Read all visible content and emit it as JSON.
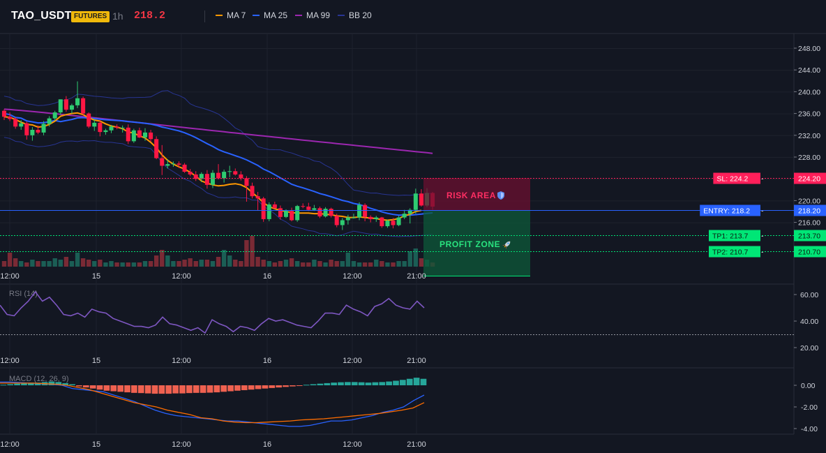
{
  "header": {
    "symbol": "TAO_USDT",
    "badge": "FUTURES",
    "timeframe": "1h",
    "last_price": "218.2"
  },
  "legend": [
    {
      "label": "MA 7",
      "color": "#ff9800"
    },
    {
      "label": "MA 25",
      "color": "#2962ff"
    },
    {
      "label": "MA 99",
      "color": "#9c27b0"
    },
    {
      "label": "BB 20",
      "color": "#1e3a8a"
    }
  ],
  "colors": {
    "up": "#26a69a",
    "up_bright": "#2ecc71",
    "down": "#f23645",
    "down_bright": "#ff1744",
    "ma7": "#ff9800",
    "ma25": "#2962ff",
    "ma99": "#9c27b0",
    "bb": "#283593",
    "rsi": "#7e57c2",
    "macd": "#2962ff",
    "signal": "#ff6d00"
  },
  "price_axis": {
    "ticks": [
      "248.00",
      "244.00",
      "240.00",
      "236.00",
      "232.00",
      "228.00",
      "224.00",
      "220.00",
      "216.00"
    ],
    "tick_values": [
      248,
      244,
      240,
      236,
      232,
      228,
      224,
      220,
      216
    ]
  },
  "time_axis": {
    "labels": [
      "12:00",
      "15",
      "12:00",
      "16",
      "12:00",
      "21:00"
    ]
  },
  "levels": [
    {
      "id": "sl",
      "line_label": "SL: 224.2",
      "axis_label": "224.20",
      "value": 224.2,
      "color": "#ff1f5a"
    },
    {
      "id": "entry",
      "line_label": "ENTRY: 218.2",
      "axis_label": "218.20",
      "value": 218.2,
      "color": "#2962ff"
    },
    {
      "id": "tp1",
      "line_label": "TP1: 213.7",
      "axis_label": "213.70",
      "value": 213.7,
      "color": "#00e676"
    },
    {
      "id": "tp2",
      "line_label": "TP2: 210.7",
      "axis_label": "210.70",
      "value": 210.7,
      "color": "#00e676"
    }
  ],
  "zones": {
    "risk": "RISK AREA",
    "profit": "PROFIT ZONE"
  },
  "rsi": {
    "title": "RSI (14)",
    "ticks": [
      "60.00",
      "40.00",
      "20.00"
    ],
    "values": [
      52,
      45,
      44,
      50,
      55,
      62,
      55,
      58,
      52,
      45,
      44,
      46,
      43,
      49,
      47,
      46,
      42,
      40,
      38,
      36,
      36,
      35,
      37,
      43,
      38,
      37,
      35,
      33,
      35,
      31,
      41,
      38,
      36,
      32,
      36,
      35,
      33,
      38,
      42,
      40,
      41,
      39,
      37,
      36,
      35,
      40,
      46,
      46,
      45,
      52,
      49,
      47,
      44,
      51,
      53,
      57,
      52,
      50,
      49,
      55,
      50
    ]
  },
  "macd": {
    "title": "MACD (12, 26, 9)",
    "ticks": [
      "0.00",
      "-2.00",
      "-4.00"
    ],
    "histogram": [
      0.05,
      0.1,
      0.15,
      0.2,
      0.25,
      0.25,
      0.3,
      0.35,
      0.3,
      0.2,
      0.1,
      -0.1,
      -0.2,
      -0.3,
      -0.4,
      -0.5,
      -0.55,
      -0.6,
      -0.65,
      -0.7,
      -0.72,
      -0.75,
      -0.78,
      -0.78,
      -0.78,
      -0.75,
      -0.75,
      -0.72,
      -0.7,
      -0.7,
      -0.68,
      -0.65,
      -0.6,
      -0.55,
      -0.5,
      -0.45,
      -0.4,
      -0.35,
      -0.3,
      -0.25,
      -0.2,
      -0.15,
      -0.1,
      -0.05,
      0.05,
      0.1,
      0.15,
      0.2,
      0.25,
      0.28,
      0.3,
      0.3,
      0.28,
      0.25,
      0.28,
      0.3,
      0.35,
      0.42,
      0.5,
      0.6,
      0.7,
      0.6
    ],
    "macd_line": [
      0.3,
      0.3,
      0.25,
      0.2,
      0.15,
      0.1,
      0.0,
      -0.3,
      -0.4,
      -0.5,
      -0.6,
      -0.9,
      -1.2,
      -1.5,
      -1.9,
      -2.3,
      -2.6,
      -2.8,
      -2.9,
      -3.0,
      -3.1,
      -3.2,
      -3.3,
      -3.3,
      -3.4,
      -3.5,
      -3.6,
      -3.7,
      -3.8,
      -3.8,
      -3.7,
      -3.5,
      -3.3,
      -3.3,
      -3.2,
      -3.0,
      -2.8,
      -2.5,
      -2.3,
      -2.0,
      -1.4,
      -0.9
    ],
    "signal_line": [
      0.2,
      0.2,
      0.2,
      0.2,
      0.15,
      0.1,
      0.0,
      -0.2,
      -0.4,
      -0.7,
      -1.0,
      -1.3,
      -1.6,
      -1.8,
      -2.0,
      -2.3,
      -2.5,
      -2.7,
      -3.0,
      -3.1,
      -3.3,
      -3.4,
      -3.45,
      -3.45,
      -3.4,
      -3.35,
      -3.3,
      -3.2,
      -3.15,
      -3.1,
      -3.0,
      -2.9,
      -2.8,
      -2.7,
      -2.6,
      -2.45,
      -2.3,
      -2.1,
      -1.6
    ]
  },
  "candles": [
    [
      236.5,
      236.8,
      234.8,
      235.4
    ],
    [
      235.4,
      236.2,
      234.6,
      235.0
    ],
    [
      235.0,
      235.3,
      233.2,
      233.6
    ],
    [
      233.6,
      234.8,
      233.0,
      234.2
    ],
    [
      234.2,
      234.5,
      231.2,
      232.0
    ],
    [
      232.0,
      233.5,
      231.0,
      233.0
    ],
    [
      233.0,
      233.8,
      232.2,
      232.5
    ],
    [
      232.5,
      234.6,
      232.0,
      234.1
    ],
    [
      234.1,
      235.5,
      233.6,
      235.1
    ],
    [
      235.1,
      236.5,
      234.7,
      236.2
    ],
    [
      236.2,
      238.6,
      235.8,
      238.6
    ],
    [
      238.6,
      239.2,
      236.3,
      236.7
    ],
    [
      236.7,
      237.8,
      236.0,
      237.5
    ],
    [
      237.5,
      241.9,
      237.0,
      238.8
    ],
    [
      238.8,
      239.1,
      235.6,
      236.0
    ],
    [
      236.0,
      236.2,
      233.3,
      233.6
    ],
    [
      233.6,
      235.0,
      232.8,
      234.3
    ],
    [
      234.3,
      234.8,
      231.8,
      232.6
    ],
    [
      232.6,
      233.2,
      232.1,
      232.9
    ],
    [
      232.9,
      233.9,
      232.4,
      233.6
    ],
    [
      233.6,
      234.0,
      233.1,
      233.4
    ],
    [
      233.4,
      233.8,
      232.5,
      233.4
    ],
    [
      233.4,
      234.0,
      230.4,
      230.9
    ],
    [
      230.9,
      233.2,
      230.6,
      232.9
    ],
    [
      232.9,
      233.4,
      231.5,
      231.6
    ],
    [
      231.6,
      233.3,
      231.0,
      232.5
    ],
    [
      232.5,
      233.0,
      230.8,
      231.3
    ],
    [
      231.3,
      231.8,
      227.6,
      227.8
    ],
    [
      227.8,
      230.2,
      224.7,
      226.4
    ],
    [
      226.4,
      227.6,
      225.9,
      226.7
    ],
    [
      226.7,
      227.2,
      226.2,
      226.8
    ],
    [
      226.8,
      227.2,
      226.0,
      226.6
    ],
    [
      226.6,
      226.9,
      225.1,
      225.3
    ],
    [
      225.3,
      225.8,
      224.5,
      224.8
    ],
    [
      224.8,
      225.4,
      223.6,
      224.0
    ],
    [
      224.0,
      225.2,
      223.4,
      224.9
    ],
    [
      224.9,
      225.6,
      222.2,
      222.9
    ],
    [
      222.9,
      225.6,
      222.3,
      225.1
    ],
    [
      225.1,
      226.7,
      223.9,
      224.1
    ],
    [
      224.1,
      225.7,
      223.3,
      225.3
    ],
    [
      225.3,
      226.4,
      224.3,
      225.4
    ],
    [
      225.4,
      225.9,
      224.6,
      224.8
    ],
    [
      224.8,
      225.4,
      223.7,
      224.1
    ],
    [
      224.1,
      224.5,
      219.8,
      222.7
    ],
    [
      222.7,
      223.3,
      220.4,
      220.8
    ],
    [
      220.8,
      221.6,
      218.2,
      220.4
    ],
    [
      220.4,
      220.7,
      216.1,
      216.6
    ],
    [
      216.6,
      219.7,
      216.2,
      219.3
    ],
    [
      219.3,
      219.8,
      218.5,
      218.6
    ],
    [
      218.6,
      219.1,
      216.5,
      217.0
    ],
    [
      217.0,
      218.4,
      216.8,
      218.1
    ],
    [
      218.1,
      218.7,
      216.2,
      216.4
    ],
    [
      216.4,
      219.2,
      216.1,
      219.0
    ],
    [
      219.0,
      219.5,
      218.6,
      218.9
    ],
    [
      218.9,
      219.6,
      218.1,
      218.3
    ],
    [
      218.3,
      219.2,
      218.1,
      218.6
    ],
    [
      218.6,
      218.9,
      216.8,
      217.1
    ],
    [
      217.1,
      218.8,
      216.9,
      218.5
    ],
    [
      218.5,
      218.7,
      216.9,
      217.2
    ],
    [
      217.2,
      217.6,
      215.1,
      215.5
    ],
    [
      215.5,
      216.8,
      214.6,
      216.4
    ],
    [
      216.4,
      217.4,
      215.6,
      216.9
    ],
    [
      216.9,
      217.6,
      216.7,
      216.9
    ],
    [
      216.9,
      219.7,
      216.4,
      219.2
    ],
    [
      219.2,
      219.5,
      216.2,
      217.0
    ],
    [
      217.0,
      217.3,
      216.0,
      216.6
    ],
    [
      216.6,
      217.2,
      216.1,
      216.9
    ],
    [
      216.9,
      217.0,
      215.0,
      215.3
    ],
    [
      215.3,
      216.5,
      215.0,
      216.3
    ],
    [
      216.3,
      216.8,
      214.9,
      215.5
    ],
    [
      215.5,
      217.2,
      215.3,
      216.9
    ],
    [
      216.9,
      218.3,
      216.6,
      217.6
    ],
    [
      217.6,
      218.6,
      215.8,
      218.3
    ],
    [
      218.3,
      222.2,
      217.6,
      221.3
    ],
    [
      221.3,
      222.1,
      218.9,
      219.1
    ],
    [
      219.1,
      222.3,
      218.8,
      221.4
    ],
    [
      221.4,
      221.6,
      218.3,
      218.9
    ]
  ],
  "volume": [
    4,
    10,
    6,
    4,
    3,
    5,
    4,
    4,
    4,
    6,
    5,
    7,
    4,
    10,
    6,
    5,
    4,
    5,
    3,
    4,
    3,
    3,
    3,
    3,
    3,
    4,
    4,
    8,
    12,
    8,
    4,
    4,
    5,
    6,
    4,
    5,
    5,
    4,
    7,
    12,
    8,
    5,
    4,
    19,
    22,
    7,
    5,
    4,
    3,
    4,
    5,
    6,
    4,
    3,
    3,
    5,
    4,
    3,
    5,
    4,
    4,
    10,
    4,
    3,
    3,
    3,
    5,
    4,
    3,
    3,
    4,
    4,
    11,
    13,
    6,
    5,
    3
  ],
  "ma7": [
    235.4,
    235.3,
    234.9,
    234.4,
    234.0,
    233.9,
    233.5,
    233.6,
    234.0,
    234.6,
    235.5,
    235.8,
    236.0,
    236.1,
    235.8,
    235.2,
    234.8,
    234.6,
    234.1,
    233.7,
    233.5,
    233.2,
    232.6,
    232.4,
    231.9,
    231.5,
    230.7,
    229.7,
    228.4,
    227.4,
    226.7,
    226.2,
    225.8,
    225.2,
    224.5,
    223.6,
    223.2,
    222.9,
    222.7,
    222.8,
    223.0,
    223.1,
    222.9,
    222.4,
    221.5,
    220.6,
    219.6,
    218.9,
    218.5,
    218.2,
    218.0,
    217.8,
    217.7,
    217.7,
    217.7,
    217.6,
    217.6,
    217.5,
    217.4,
    217.2,
    217.1,
    216.9,
    216.9,
    217.0,
    216.9,
    216.8,
    216.7,
    216.5,
    216.4,
    216.5,
    216.7,
    217.2,
    217.5,
    218.0,
    218.2
  ]
}
